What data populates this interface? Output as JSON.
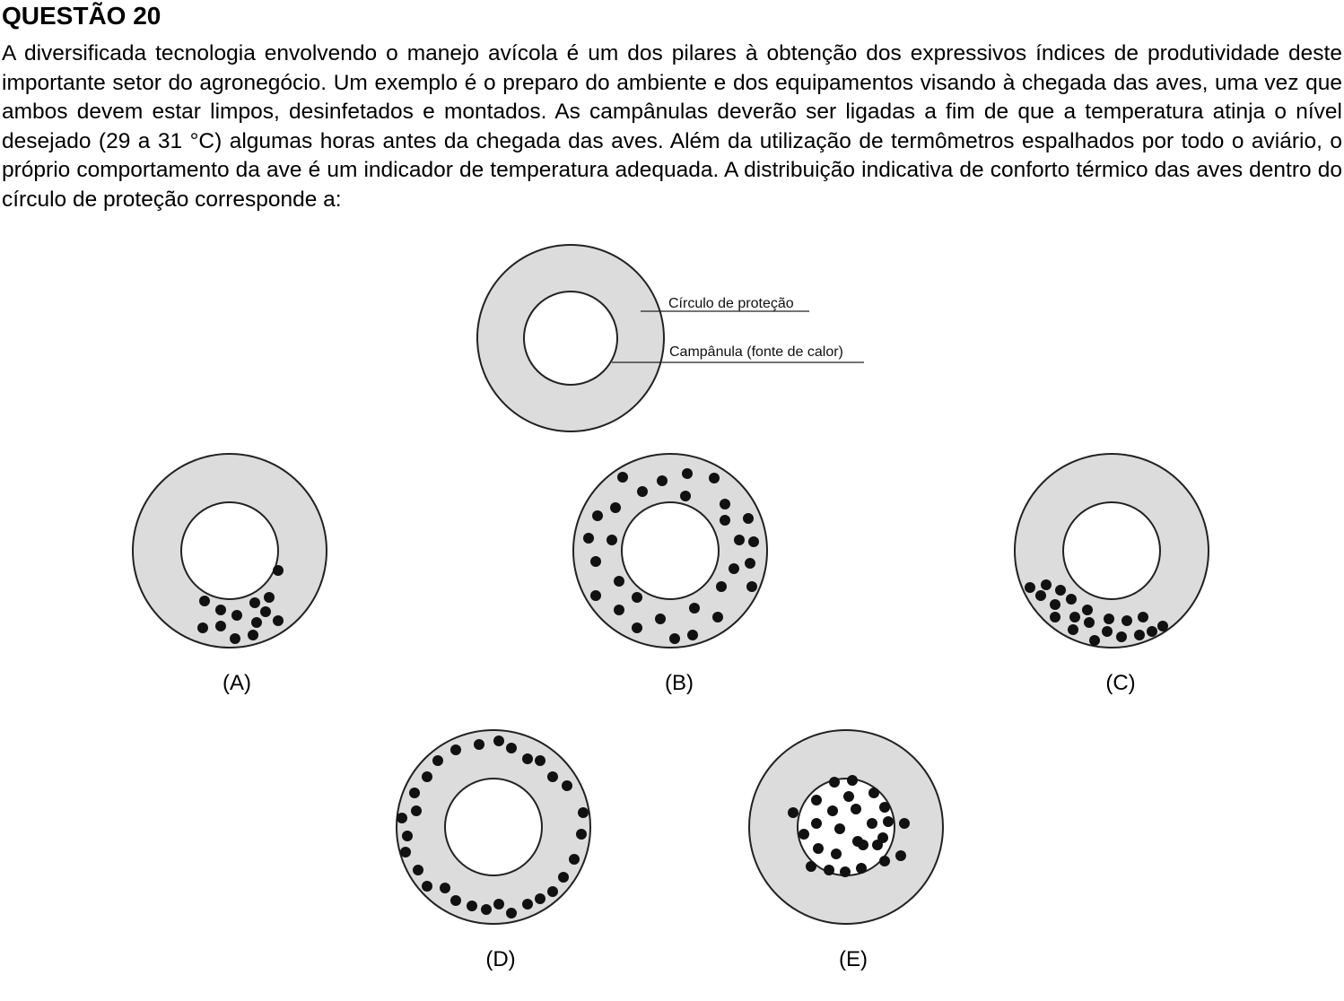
{
  "question": {
    "title": "QUESTÃO 20",
    "text": "A diversificada tecnologia envolvendo o manejo avícola é um dos pilares à obtenção dos expressivos índices de produtividade deste importante setor do agronegócio. Um exemplo é o preparo do ambiente e dos equipamentos visando à chegada das aves, uma vez que ambos devem estar limpos, desinfetados e montados. As campânulas deverão ser ligadas a fim de que a temperatura atinja o nível desejado (29 a 31 °C) algumas horas antes da chegada das aves. Além da utilização de termômetros espalhados por todo o aviário, o próprio comportamento da ave é um indicador de temperatura adequada. A distribuição indicativa de conforto térmico das aves dentro do círculo de proteção corresponde a:"
  },
  "legend": {
    "outer_label": "Círculo de proteção",
    "inner_label": "Campânula (fonte de calor)"
  },
  "options": [
    {
      "label": "(A)",
      "distribution": "clustered at bottom of ring"
    },
    {
      "label": "(B)",
      "distribution": "evenly spread across ring"
    },
    {
      "label": "(C)",
      "distribution": "clustered at bottom-left of ring"
    },
    {
      "label": "(D)",
      "distribution": "along outer edge of ring"
    },
    {
      "label": "(E)",
      "distribution": "crowded under heat source"
    }
  ],
  "colors": {
    "ring_fill": "#dcdcdc",
    "bird": "#111111",
    "outline": "#222222"
  }
}
